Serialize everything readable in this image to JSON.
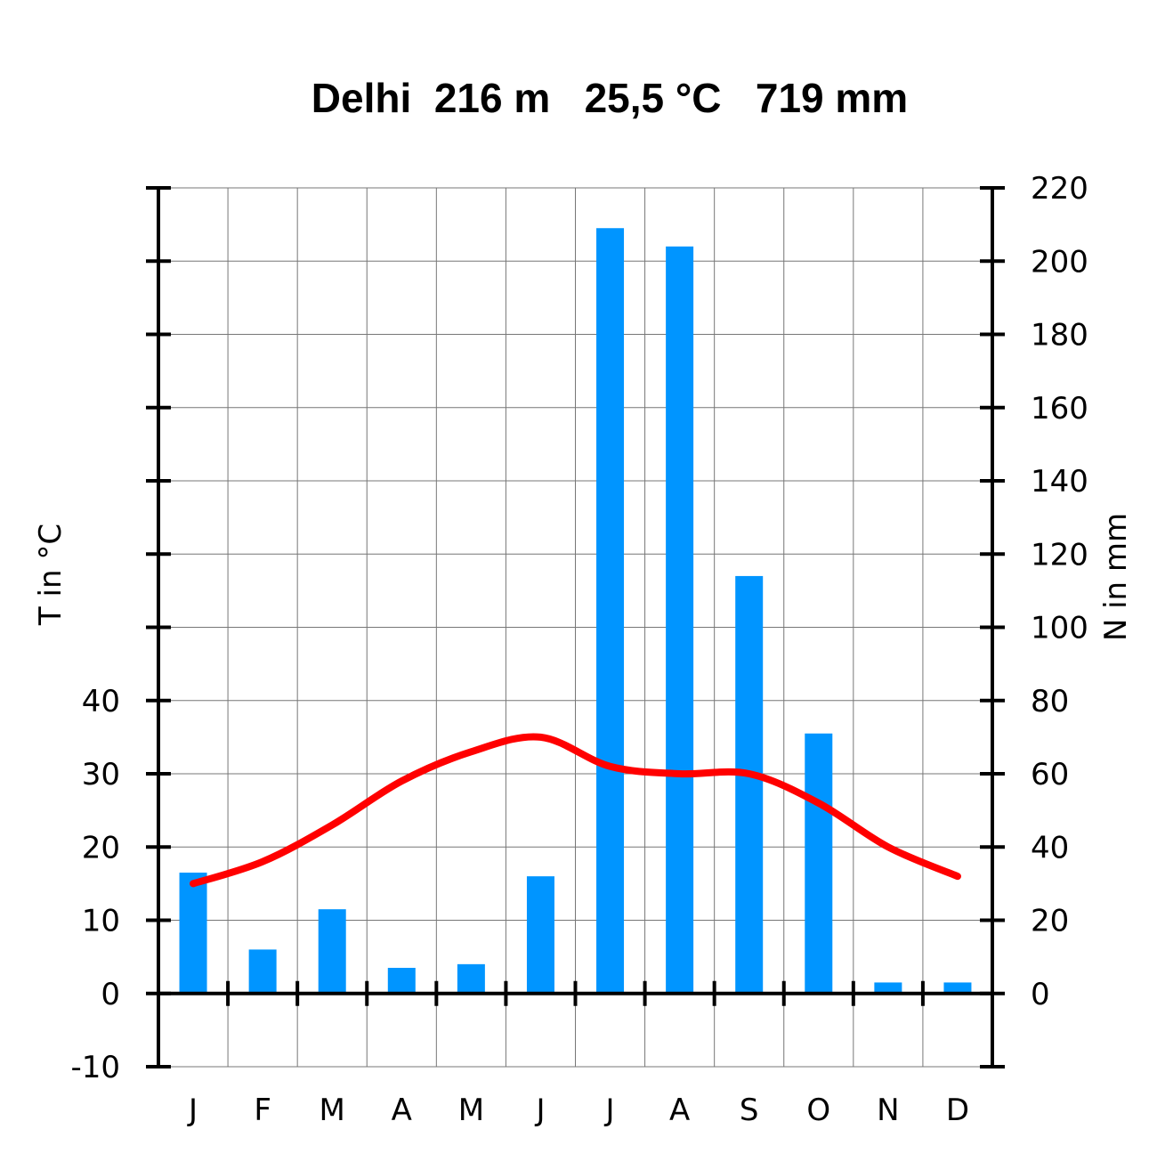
{
  "chart_data": {
    "type": "bar+line",
    "title": "Delhi  216 m   25,5 °C   719 mm",
    "categories": [
      "J",
      "F",
      "M",
      "A",
      "M",
      "J",
      "J",
      "A",
      "S",
      "O",
      "N",
      "D"
    ],
    "series": [
      {
        "kind": "bar",
        "axis": "right",
        "values": [
          33,
          12,
          23,
          7,
          8,
          32,
          209,
          204,
          114,
          71,
          3,
          3
        ]
      },
      {
        "kind": "line",
        "axis": "left",
        "values": [
          15,
          18,
          23,
          29,
          33,
          35,
          31,
          30,
          30,
          26,
          20,
          16
        ]
      }
    ],
    "y_left": {
      "label": "T in °C",
      "range": [
        -10,
        110
      ],
      "ticks": [
        -10,
        0,
        10,
        20,
        30,
        40,
        50,
        60,
        70,
        80,
        90,
        100,
        110
      ],
      "tick_labels": [
        "-10",
        "0",
        "10",
        "20",
        "30",
        "40"
      ]
    },
    "y_right": {
      "label": "N in mm",
      "range": [
        -20,
        220
      ],
      "ticks": [
        0,
        20,
        40,
        60,
        80,
        100,
        120,
        140,
        160,
        180,
        200,
        220
      ],
      "tick_labels": [
        "0",
        "20",
        "40",
        "60",
        "80",
        "100",
        "120",
        "140",
        "160",
        "180",
        "200",
        "220"
      ]
    },
    "grid": true,
    "colors": {
      "precipitation": "#0095FF",
      "temperature": "#FF0000",
      "grid": "#777777",
      "axis": "#000000"
    }
  }
}
